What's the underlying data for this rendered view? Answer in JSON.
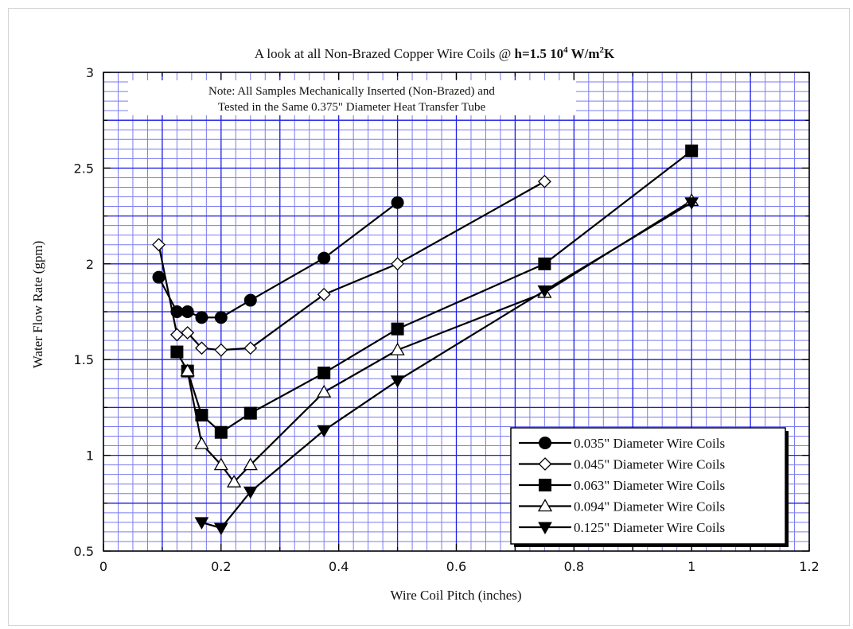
{
  "chart_data": {
    "type": "line",
    "title": {
      "prefix": "A look at all Non-Brazed Copper Wire Coils @ ",
      "bold_main": "h=1.5 10",
      "bold_sup1": "4",
      "bold_unit": " W/m",
      "bold_sup2": "2",
      "bold_end": "K"
    },
    "note": [
      "Note: All Samples Mechanically Inserted (Non-Brazed) and",
      "Tested in the Same 0.375\" Diameter Heat Transfer Tube"
    ],
    "xlabel": "Wire Coil Pitch (inches)",
    "ylabel": "Water Flow Rate (gpm)",
    "xlim": [
      0,
      1.2
    ],
    "ylim": [
      0.5,
      3
    ],
    "xticks": [
      0,
      0.2,
      0.4,
      0.6,
      0.8,
      1,
      1.2
    ],
    "xtick_labels": [
      "0",
      "0.2",
      "0.4",
      "0.6",
      "0.8",
      "1",
      "1.2"
    ],
    "yticks": [
      0.5,
      1,
      1.5,
      2,
      2.5,
      3
    ],
    "ytick_labels": [
      "0.5",
      "1",
      "1.5",
      "2",
      "2.5",
      "3"
    ],
    "grid": true,
    "legend_position": "bottom-right",
    "colors": {
      "major_grid": "#1e1ee6",
      "minor_grid": "#7b7bf0",
      "line": "#000000",
      "background": "#ffffff"
    },
    "series": [
      {
        "name": "0.035\" Diameter Wire Coils",
        "marker": "circle-filled",
        "x": [
          0.094,
          0.125,
          0.143,
          0.167,
          0.2,
          0.25,
          0.375,
          0.5
        ],
        "y": [
          1.93,
          1.75,
          1.75,
          1.72,
          1.72,
          1.81,
          2.03,
          2.32
        ]
      },
      {
        "name": "0.045\" Diameter Wire Coils",
        "marker": "diamond-open",
        "x": [
          0.094,
          0.125,
          0.143,
          0.167,
          0.2,
          0.25,
          0.375,
          0.5,
          0.75
        ],
        "y": [
          2.1,
          1.63,
          1.64,
          1.56,
          1.55,
          1.56,
          1.84,
          2.0,
          2.43
        ]
      },
      {
        "name": "0.063\" Diameter Wire Coils",
        "marker": "square-filled",
        "x": [
          0.125,
          0.143,
          0.167,
          0.2,
          0.25,
          0.375,
          0.5,
          0.75,
          1.0
        ],
        "y": [
          1.54,
          1.44,
          1.21,
          1.12,
          1.22,
          1.43,
          1.66,
          2.0,
          2.59
        ]
      },
      {
        "name": "0.094\" Diameter Wire Coils",
        "marker": "triangle-up-open",
        "x": [
          0.143,
          0.167,
          0.2,
          0.222,
          0.25,
          0.375,
          0.5,
          0.75,
          1.0
        ],
        "y": [
          1.44,
          1.06,
          0.95,
          0.86,
          0.95,
          1.33,
          1.55,
          1.85,
          2.33
        ]
      },
      {
        "name": "0.125\" Diameter Wire Coils",
        "marker": "triangle-down-filled",
        "x": [
          0.167,
          0.2,
          0.25,
          0.375,
          0.5,
          0.75,
          1.0
        ],
        "y": [
          0.65,
          0.62,
          0.81,
          1.13,
          1.39,
          1.86,
          2.32
        ]
      }
    ]
  }
}
